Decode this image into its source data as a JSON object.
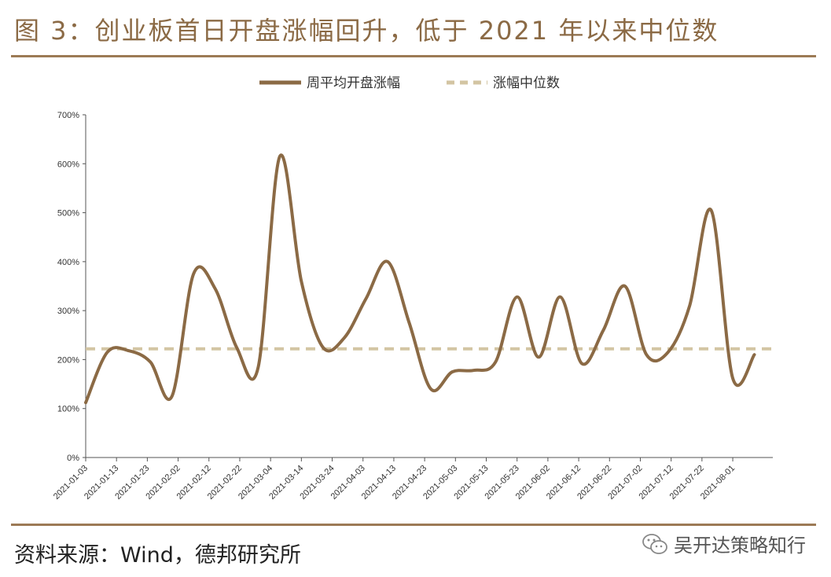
{
  "title": "图 3：创业板首日开盘涨幅回升，低于 2021 年以来中位数",
  "source": "资料来源：Wind，德邦研究所",
  "watermark": "吴开达策略知行",
  "colors": {
    "brand": "#9c7a55",
    "series": "#8b6a45",
    "median": "#d3c5a3"
  },
  "chart_data": {
    "type": "line",
    "legend_position": "top-center",
    "grid": false,
    "ylim": [
      0,
      700
    ],
    "y_ticks": [
      0,
      100,
      200,
      300,
      400,
      500,
      600,
      700
    ],
    "y_tick_labels": [
      "0%",
      "100%",
      "200%",
      "300%",
      "400%",
      "500%",
      "600%",
      "700%"
    ],
    "x_tick_labels": [
      "2021-01-03",
      "2021-01-13",
      "2021-01-23",
      "2021-02-02",
      "2021-02-12",
      "2021-02-22",
      "2021-03-04",
      "2021-03-14",
      "2021-03-24",
      "2021-04-03",
      "2021-04-13",
      "2021-04-23",
      "2021-05-03",
      "2021-05-13",
      "2021-05-23",
      "2021-06-02",
      "2021-06-12",
      "2021-06-22",
      "2021-07-02",
      "2021-07-12",
      "2021-07-22",
      "2021-08-01"
    ],
    "x_range": [
      "2021-01-03",
      "2021-08-14"
    ],
    "series": [
      {
        "name": "周平均开盘涨幅",
        "style": "solid",
        "x": [
          "2021-01-03",
          "2021-01-10",
          "2021-01-17",
          "2021-01-24",
          "2021-01-31",
          "2021-02-07",
          "2021-02-14",
          "2021-02-21",
          "2021-02-28",
          "2021-03-07",
          "2021-03-14",
          "2021-03-21",
          "2021-03-28",
          "2021-04-04",
          "2021-04-11",
          "2021-04-18",
          "2021-04-25",
          "2021-05-02",
          "2021-05-09",
          "2021-05-16",
          "2021-05-23",
          "2021-05-30",
          "2021-06-06",
          "2021-06-13",
          "2021-06-20",
          "2021-06-27",
          "2021-07-04",
          "2021-07-11",
          "2021-07-18",
          "2021-07-25",
          "2021-08-01",
          "2021-08-08"
        ],
        "values": [
          112,
          215,
          218,
          195,
          125,
          375,
          345,
          225,
          185,
          615,
          360,
          225,
          245,
          325,
          400,
          275,
          140,
          175,
          178,
          195,
          328,
          205,
          328,
          192,
          260,
          350,
          210,
          215,
          310,
          505,
          162,
          210
        ]
      },
      {
        "name": "涨幅中位数",
        "style": "dashed",
        "value": 222
      }
    ]
  }
}
